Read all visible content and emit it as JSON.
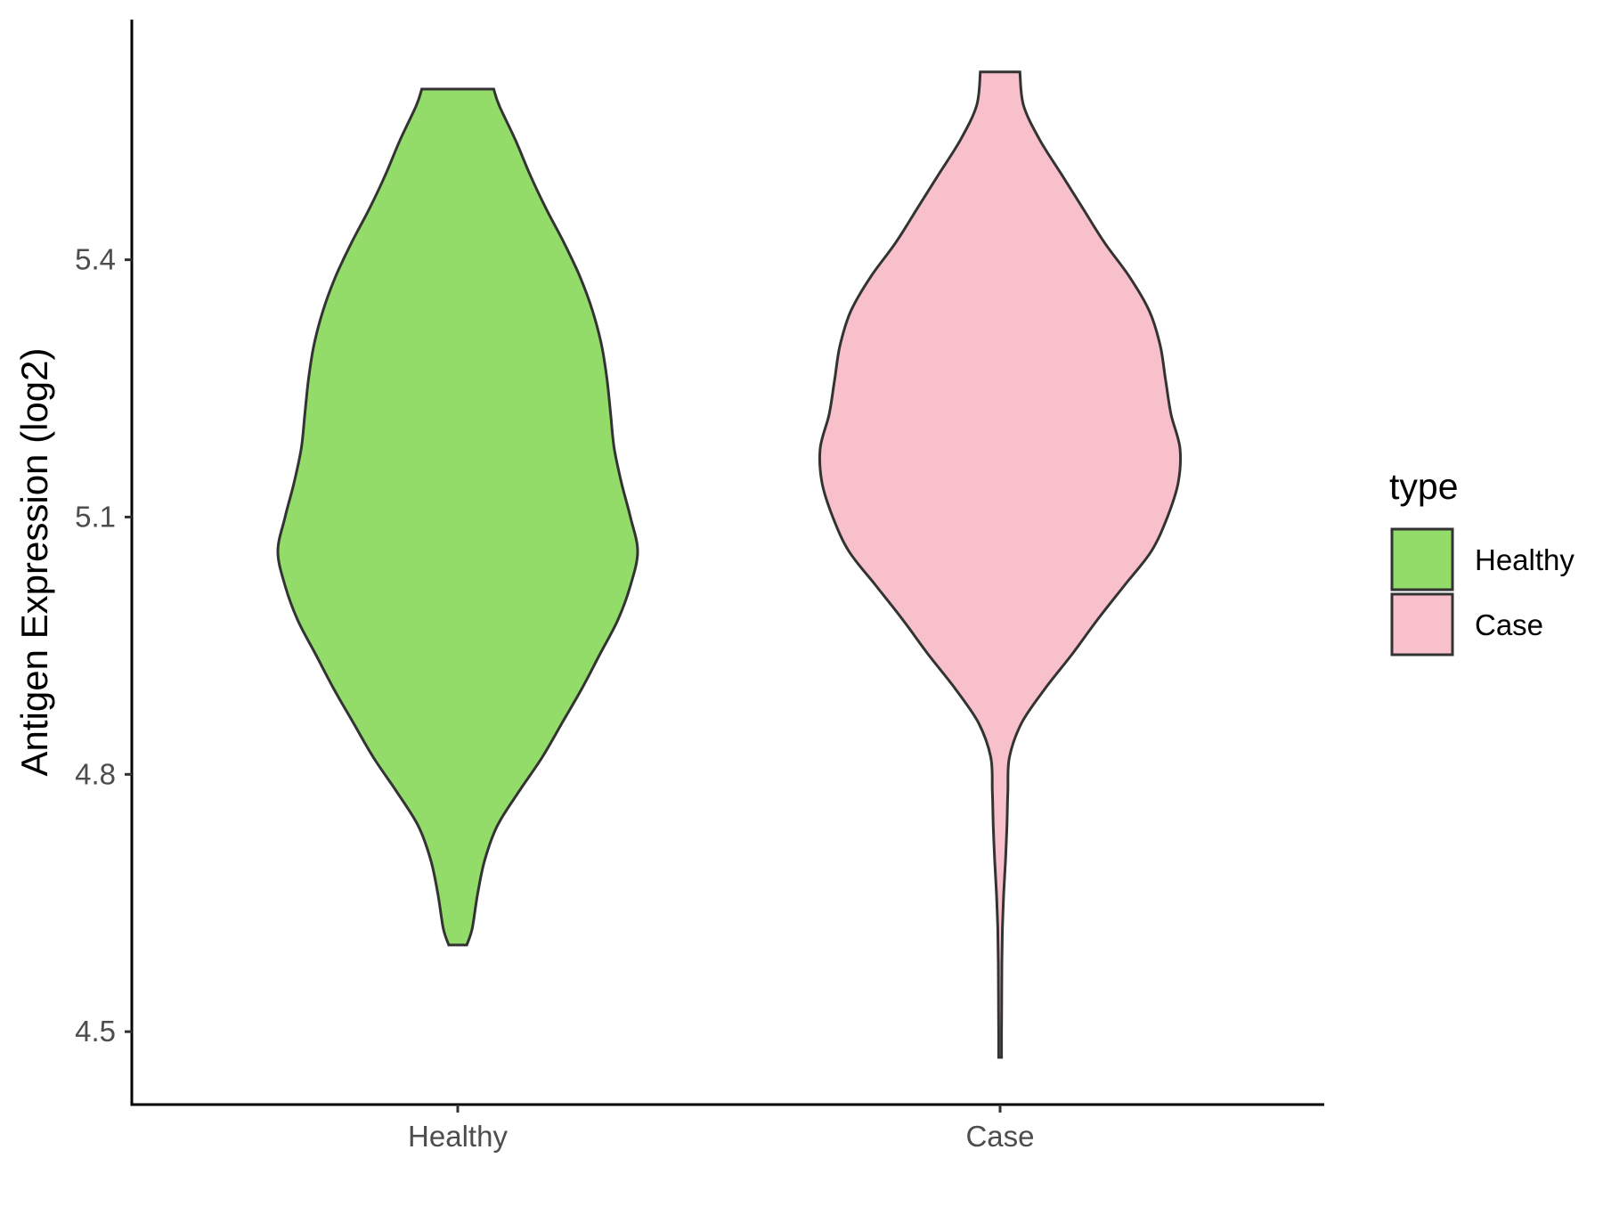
{
  "chart_data": {
    "type": "violin",
    "title": "",
    "xlabel": "",
    "ylabel": "Antigen Expression (log2)",
    "ylim": [
      4.415,
      5.68
    ],
    "y_ticks": [
      "4.5",
      "4.8",
      "5.1",
      "5.4"
    ],
    "categories": [
      "Healthy",
      "Case"
    ],
    "grid": false,
    "legend": {
      "title": "type",
      "placement": "right",
      "entries": [
        {
          "label": "Healthy",
          "color": "#93dc6a"
        },
        {
          "label": "Case",
          "color": "#f7c0cb"
        }
      ]
    },
    "series": [
      {
        "name": "Healthy",
        "color": "#93dc6a",
        "y_min": 4.601,
        "y_max": 5.599,
        "density_profile": [
          [
            4.601,
            0.05
          ],
          [
            4.62,
            0.08
          ],
          [
            4.66,
            0.11
          ],
          [
            4.7,
            0.15
          ],
          [
            4.74,
            0.22
          ],
          [
            4.78,
            0.34
          ],
          [
            4.82,
            0.47
          ],
          [
            4.86,
            0.58
          ],
          [
            4.9,
            0.69
          ],
          [
            4.94,
            0.79
          ],
          [
            4.98,
            0.89
          ],
          [
            5.02,
            0.96
          ],
          [
            5.06,
            1.0
          ],
          [
            5.1,
            0.96
          ],
          [
            5.14,
            0.91
          ],
          [
            5.18,
            0.87
          ],
          [
            5.22,
            0.85
          ],
          [
            5.26,
            0.83
          ],
          [
            5.3,
            0.8
          ],
          [
            5.34,
            0.75
          ],
          [
            5.38,
            0.68
          ],
          [
            5.42,
            0.59
          ],
          [
            5.46,
            0.49
          ],
          [
            5.5,
            0.4
          ],
          [
            5.54,
            0.32
          ],
          [
            5.58,
            0.23
          ],
          [
            5.599,
            0.2
          ]
        ]
      },
      {
        "name": "Case",
        "color": "#f7c0cb",
        "y_min": 4.47,
        "y_max": 5.619,
        "density_profile": [
          [
            4.47,
            0.008
          ],
          [
            4.5,
            0.008
          ],
          [
            4.54,
            0.009
          ],
          [
            4.58,
            0.01
          ],
          [
            4.62,
            0.013
          ],
          [
            4.66,
            0.02
          ],
          [
            4.7,
            0.03
          ],
          [
            4.74,
            0.038
          ],
          [
            4.78,
            0.043
          ],
          [
            4.82,
            0.052
          ],
          [
            4.86,
            0.12
          ],
          [
            4.9,
            0.25
          ],
          [
            4.94,
            0.4
          ],
          [
            4.98,
            0.54
          ],
          [
            5.02,
            0.69
          ],
          [
            5.06,
            0.84
          ],
          [
            5.1,
            0.93
          ],
          [
            5.14,
            0.99
          ],
          [
            5.18,
            1.0
          ],
          [
            5.22,
            0.95
          ],
          [
            5.26,
            0.92
          ],
          [
            5.3,
            0.89
          ],
          [
            5.34,
            0.83
          ],
          [
            5.38,
            0.72
          ],
          [
            5.42,
            0.58
          ],
          [
            5.46,
            0.46
          ],
          [
            5.5,
            0.34
          ],
          [
            5.54,
            0.22
          ],
          [
            5.58,
            0.13
          ],
          [
            5.619,
            0.11
          ]
        ]
      }
    ]
  }
}
